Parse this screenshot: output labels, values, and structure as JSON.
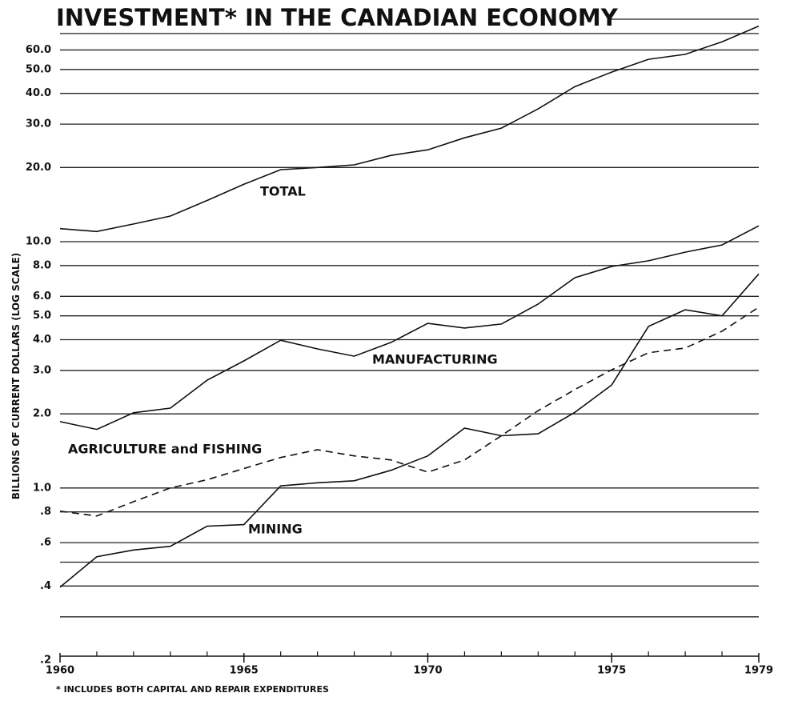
{
  "chart_data": {
    "type": "line",
    "title": "INVESTMENT* IN THE CANADIAN ECONOMY",
    "y_label": "BILLIONS OF CURRENT DOLLARS (LOG SCALE)",
    "footnote": "* INCLUDES BOTH CAPITAL AND REPAIR EXPENDITURES",
    "log_scale": true,
    "grid": true,
    "xlim": [
      1960,
      1979
    ],
    "xticks": [
      1960,
      1965,
      1970,
      1975,
      1979
    ],
    "minor_xticks": [
      1961,
      1962,
      1963,
      1964,
      1966,
      1967,
      1968,
      1969,
      1971,
      1972,
      1973,
      1974,
      1976,
      1977,
      1978
    ],
    "ylim": [
      0.2,
      80
    ],
    "yticks": [
      {
        "value": 60,
        "label": "60.0"
      },
      {
        "value": 50,
        "label": "50.0"
      },
      {
        "value": 40,
        "label": "40.0"
      },
      {
        "value": 30,
        "label": "30.0"
      },
      {
        "value": 20,
        "label": "20.0"
      },
      {
        "value": 10,
        "label": "10.0"
      },
      {
        "value": 8,
        "label": "8.0"
      },
      {
        "value": 6,
        "label": "6.0"
      },
      {
        "value": 5,
        "label": "5.0"
      },
      {
        "value": 4,
        "label": "4.0"
      },
      {
        "value": 3,
        "label": "3.0"
      },
      {
        "value": 2,
        "label": "2.0"
      },
      {
        "value": 1,
        "label": "1.0"
      },
      {
        "value": 0.8,
        "label": ".8"
      },
      {
        "value": 0.6,
        "label": ".6"
      },
      {
        "value": 0.4,
        "label": ".4"
      },
      {
        "value": 0.2,
        "label": ".2"
      }
    ],
    "minor_yticks": [
      80,
      70,
      0.5,
      0.3
    ],
    "x": [
      1960,
      1961,
      1962,
      1963,
      1964,
      1965,
      1966,
      1967,
      1968,
      1969,
      1970,
      1971,
      1972,
      1973,
      1974,
      1975,
      1976,
      1977,
      1978,
      1979
    ],
    "series": [
      {
        "name": "TOTAL",
        "color": "#111111",
        "dash": false,
        "values": [
          11.3,
          11.0,
          11.8,
          12.7,
          14.7,
          17.1,
          19.6,
          20.0,
          20.5,
          22.4,
          23.6,
          26.4,
          28.9,
          34.6,
          42.6,
          48.8,
          55.0,
          57.6,
          64.8,
          75.0
        ]
      },
      {
        "name": "MANUFACTURING",
        "color": "#111111",
        "dash": false,
        "values": [
          1.86,
          1.73,
          2.02,
          2.11,
          2.74,
          3.28,
          3.98,
          3.67,
          3.43,
          3.9,
          4.66,
          4.46,
          4.63,
          5.58,
          7.14,
          7.93,
          8.36,
          9.07,
          9.7,
          11.6
        ]
      },
      {
        "name": "AGRICULTURE and FISHING",
        "color": "#111111",
        "dash": true,
        "values": [
          0.805,
          0.77,
          0.88,
          1.0,
          1.08,
          1.2,
          1.33,
          1.43,
          1.35,
          1.3,
          1.16,
          1.3,
          1.63,
          2.06,
          2.51,
          3.02,
          3.54,
          3.7,
          4.33,
          5.42
        ]
      },
      {
        "name": "MINING",
        "color": "#111111",
        "dash": false,
        "values": [
          0.396,
          0.526,
          0.56,
          0.58,
          0.7,
          0.71,
          1.02,
          1.05,
          1.07,
          1.18,
          1.35,
          1.75,
          1.63,
          1.66,
          2.03,
          2.62,
          4.53,
          5.29,
          5.0,
          7.4
        ]
      }
    ]
  }
}
